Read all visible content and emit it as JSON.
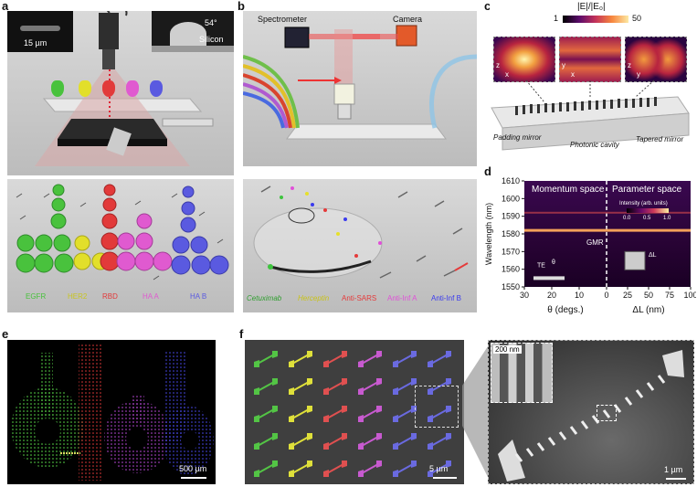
{
  "panels": {
    "a": {
      "label": "a",
      "inset_left_scale": "15 µm",
      "inset_right_angle": "54°",
      "inset_right_label": "Silicon",
      "reagents": [
        {
          "label": "EGFR",
          "color": "#49c23d"
        },
        {
          "label": "HER2",
          "color": "#e2df2a"
        },
        {
          "label": "RBD",
          "color": "#e23a3a"
        },
        {
          "label": "HA A",
          "color": "#e05ad0"
        },
        {
          "label": "HA B",
          "color": "#5a5ae0"
        }
      ]
    },
    "b": {
      "label": "b",
      "spectrometer": "Spectrometer",
      "camera": "Camera",
      "antibodies": [
        {
          "label": "Cetuximab",
          "color": "#3ec43e"
        },
        {
          "label": "Herceptin",
          "color": "#e6e02a"
        },
        {
          "label": "Anti-SARS",
          "color": "#e53a3a"
        },
        {
          "label": "Anti-Inf A",
          "color": "#e050d8"
        },
        {
          "label": "Anti-Inf B",
          "color": "#3a3aee"
        }
      ]
    },
    "c": {
      "label": "c",
      "colorbar_title": "|E|/|E₀|",
      "colorbar_min": "1",
      "colorbar_max": "50",
      "axes1": [
        "z",
        "x"
      ],
      "axes2": [
        "y",
        "x"
      ],
      "axes3": [
        "z",
        "y"
      ],
      "labels": [
        "Padding mirror",
        "Photonic cavity",
        "Tapered mirror"
      ]
    },
    "d": {
      "label": "d",
      "left_title": "Momentum space",
      "right_title": "Parameter space",
      "ylabel": "Wavelength (nm)",
      "left_xlabel": "θ (degs.)",
      "right_xlabel": "ΔL (nm)",
      "yticks": [
        "1610",
        "1600",
        "1590",
        "1580",
        "1570",
        "1560",
        "1550"
      ],
      "left_xticks": [
        "30",
        "20",
        "10",
        "0"
      ],
      "right_xticks": [
        "25",
        "50",
        "75",
        "100"
      ],
      "annot_gmr": "GMR",
      "annot_te": "TE",
      "annot_theta": "θ",
      "annot_dl": "ΔL",
      "cbar_title": "Intensity (arb. units)",
      "cbar_ticks": [
        "0.0",
        "0.5",
        "1.0"
      ]
    },
    "e": {
      "label": "e",
      "scale": "500 µm"
    },
    "f": {
      "label": "f",
      "scale_left": "5 µm",
      "scale_right": "1 µm",
      "scale_inset": "200 nm",
      "row_colors": [
        "#53c545",
        "#dfe03a",
        "#e05050",
        "#c85ad0",
        "#6a6ae0"
      ]
    }
  },
  "chart_data": {
    "type": "heatmap",
    "title": "",
    "left_panel": {
      "name": "Momentum space",
      "x_range": [
        30,
        0
      ],
      "xlabel": "θ (degs.)"
    },
    "right_panel": {
      "name": "Parameter space",
      "x_range": [
        0,
        100
      ],
      "xlabel": "ΔL (nm)"
    },
    "ylabel": "Wavelength (nm)",
    "ylim": [
      1550,
      1610
    ],
    "colorbar": {
      "label": "Intensity (arb. units)",
      "range": [
        0,
        1.0
      ]
    },
    "features": [
      {
        "label": "GMR",
        "wavelength": 1582
      }
    ]
  }
}
